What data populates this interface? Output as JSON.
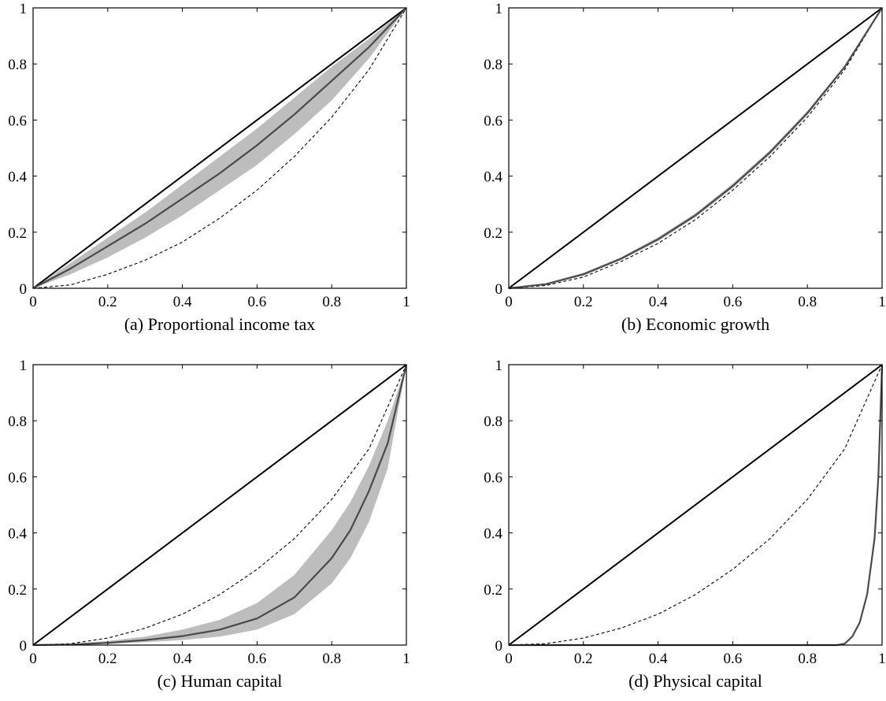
{
  "chart_data": [
    {
      "type": "line",
      "caption": "(a) Proportional income tax",
      "xlim": [
        0,
        1
      ],
      "ylim": [
        0,
        1
      ],
      "xticks": [
        "0",
        "0.2",
        "0.4",
        "0.6",
        "0.8",
        "1"
      ],
      "yticks": [
        "0",
        "0.2",
        "0.4",
        "0.6",
        "0.8",
        "1"
      ],
      "grid": false,
      "series": [
        {
          "style": "equality-line",
          "x": [
            0,
            1
          ],
          "y": [
            0,
            1
          ]
        },
        {
          "style": "dashed-baseline",
          "x": [
            0,
            0.1,
            0.2,
            0.3,
            0.4,
            0.5,
            0.6,
            0.7,
            0.8,
            0.9,
            1.0
          ],
          "y": [
            0,
            0.012,
            0.05,
            0.1,
            0.165,
            0.25,
            0.35,
            0.47,
            0.61,
            0.78,
            1.0
          ]
        },
        {
          "style": "mean-line",
          "x": [
            0,
            0.1,
            0.2,
            0.3,
            0.4,
            0.5,
            0.6,
            0.7,
            0.8,
            0.9,
            1.0
          ],
          "y": [
            0,
            0.07,
            0.15,
            0.23,
            0.32,
            0.41,
            0.51,
            0.62,
            0.74,
            0.86,
            1.0
          ]
        },
        {
          "style": "confidence-band",
          "x": [
            0,
            0.1,
            0.2,
            0.3,
            0.4,
            0.5,
            0.6,
            0.7,
            0.8,
            0.9,
            1.0
          ],
          "lower": [
            0,
            0.05,
            0.11,
            0.18,
            0.26,
            0.35,
            0.44,
            0.55,
            0.67,
            0.82,
            1.0
          ],
          "upper": [
            0,
            0.09,
            0.18,
            0.27,
            0.37,
            0.47,
            0.57,
            0.68,
            0.79,
            0.89,
            1.0
          ]
        }
      ]
    },
    {
      "type": "line",
      "caption": "(b) Economic growth",
      "xlim": [
        0,
        1
      ],
      "ylim": [
        0,
        1
      ],
      "xticks": [
        "0",
        "0.2",
        "0.4",
        "0.6",
        "0.8",
        "1"
      ],
      "yticks": [
        "0",
        "0.2",
        "0.4",
        "0.6",
        "0.8",
        "1"
      ],
      "grid": false,
      "series": [
        {
          "style": "equality-line",
          "x": [
            0,
            1
          ],
          "y": [
            0,
            1
          ]
        },
        {
          "style": "dashed-baseline",
          "x": [
            0,
            0.1,
            0.2,
            0.3,
            0.4,
            0.5,
            0.6,
            0.7,
            0.8,
            0.9,
            1.0
          ],
          "y": [
            0,
            0.01,
            0.04,
            0.095,
            0.16,
            0.245,
            0.35,
            0.47,
            0.61,
            0.78,
            1.0
          ]
        },
        {
          "style": "mean-line",
          "x": [
            0,
            0.1,
            0.2,
            0.3,
            0.4,
            0.5,
            0.6,
            0.7,
            0.8,
            0.9,
            1.0
          ],
          "y": [
            0,
            0.015,
            0.05,
            0.105,
            0.175,
            0.26,
            0.365,
            0.485,
            0.625,
            0.79,
            1.0
          ]
        },
        {
          "style": "confidence-band",
          "x": [
            0,
            0.1,
            0.2,
            0.3,
            0.4,
            0.5,
            0.6,
            0.7,
            0.8,
            0.9,
            1.0
          ],
          "lower": [
            0,
            0.012,
            0.045,
            0.1,
            0.168,
            0.253,
            0.357,
            0.477,
            0.617,
            0.785,
            1.0
          ],
          "upper": [
            0,
            0.018,
            0.055,
            0.11,
            0.182,
            0.267,
            0.373,
            0.493,
            0.633,
            0.795,
            1.0
          ]
        }
      ]
    },
    {
      "type": "line",
      "caption": "(c) Human capital",
      "xlim": [
        0,
        1
      ],
      "ylim": [
        0,
        1
      ],
      "xticks": [
        "0",
        "0.2",
        "0.4",
        "0.6",
        "0.8",
        "1"
      ],
      "yticks": [
        "0",
        "0.2",
        "0.4",
        "0.6",
        "0.8",
        "1"
      ],
      "grid": false,
      "series": [
        {
          "style": "equality-line",
          "x": [
            0,
            1
          ],
          "y": [
            0,
            1
          ]
        },
        {
          "style": "dashed-baseline",
          "x": [
            0,
            0.1,
            0.2,
            0.3,
            0.4,
            0.5,
            0.6,
            0.7,
            0.8,
            0.9,
            1.0
          ],
          "y": [
            0,
            0.005,
            0.025,
            0.06,
            0.11,
            0.18,
            0.27,
            0.38,
            0.52,
            0.7,
            1.0
          ]
        },
        {
          "style": "mean-line",
          "x": [
            0,
            0.1,
            0.2,
            0.3,
            0.4,
            0.5,
            0.6,
            0.7,
            0.8,
            0.85,
            0.9,
            0.95,
            1.0
          ],
          "y": [
            0,
            0.002,
            0.008,
            0.018,
            0.032,
            0.055,
            0.095,
            0.17,
            0.31,
            0.41,
            0.55,
            0.72,
            1.0
          ]
        },
        {
          "style": "confidence-band",
          "x": [
            0,
            0.1,
            0.2,
            0.3,
            0.4,
            0.5,
            0.6,
            0.7,
            0.8,
            0.85,
            0.9,
            0.95,
            1.0
          ],
          "lower": [
            0,
            0.001,
            0.004,
            0.01,
            0.018,
            0.03,
            0.055,
            0.11,
            0.22,
            0.31,
            0.44,
            0.63,
            1.0
          ],
          "upper": [
            0,
            0.004,
            0.015,
            0.03,
            0.055,
            0.09,
            0.15,
            0.25,
            0.41,
            0.51,
            0.64,
            0.8,
            1.0
          ]
        }
      ]
    },
    {
      "type": "line",
      "caption": "(d) Physical capital",
      "xlim": [
        0,
        1
      ],
      "ylim": [
        0,
        1
      ],
      "xticks": [
        "0",
        "0.2",
        "0.4",
        "0.6",
        "0.8",
        "1"
      ],
      "yticks": [
        "0",
        "0.2",
        "0.4",
        "0.6",
        "0.8",
        "1"
      ],
      "grid": false,
      "series": [
        {
          "style": "equality-line",
          "x": [
            0,
            1
          ],
          "y": [
            0,
            1
          ]
        },
        {
          "style": "dashed-baseline",
          "x": [
            0,
            0.1,
            0.2,
            0.3,
            0.4,
            0.5,
            0.6,
            0.7,
            0.8,
            0.9,
            1.0
          ],
          "y": [
            0,
            0.005,
            0.025,
            0.06,
            0.11,
            0.18,
            0.27,
            0.38,
            0.52,
            0.7,
            1.0
          ]
        },
        {
          "style": "mean-line",
          "x": [
            0,
            0.8,
            0.88,
            0.9,
            0.92,
            0.94,
            0.96,
            0.98,
            0.99,
            1.0
          ],
          "y": [
            0,
            0,
            0,
            0.005,
            0.03,
            0.08,
            0.18,
            0.38,
            0.6,
            1.0
          ]
        }
      ]
    }
  ]
}
